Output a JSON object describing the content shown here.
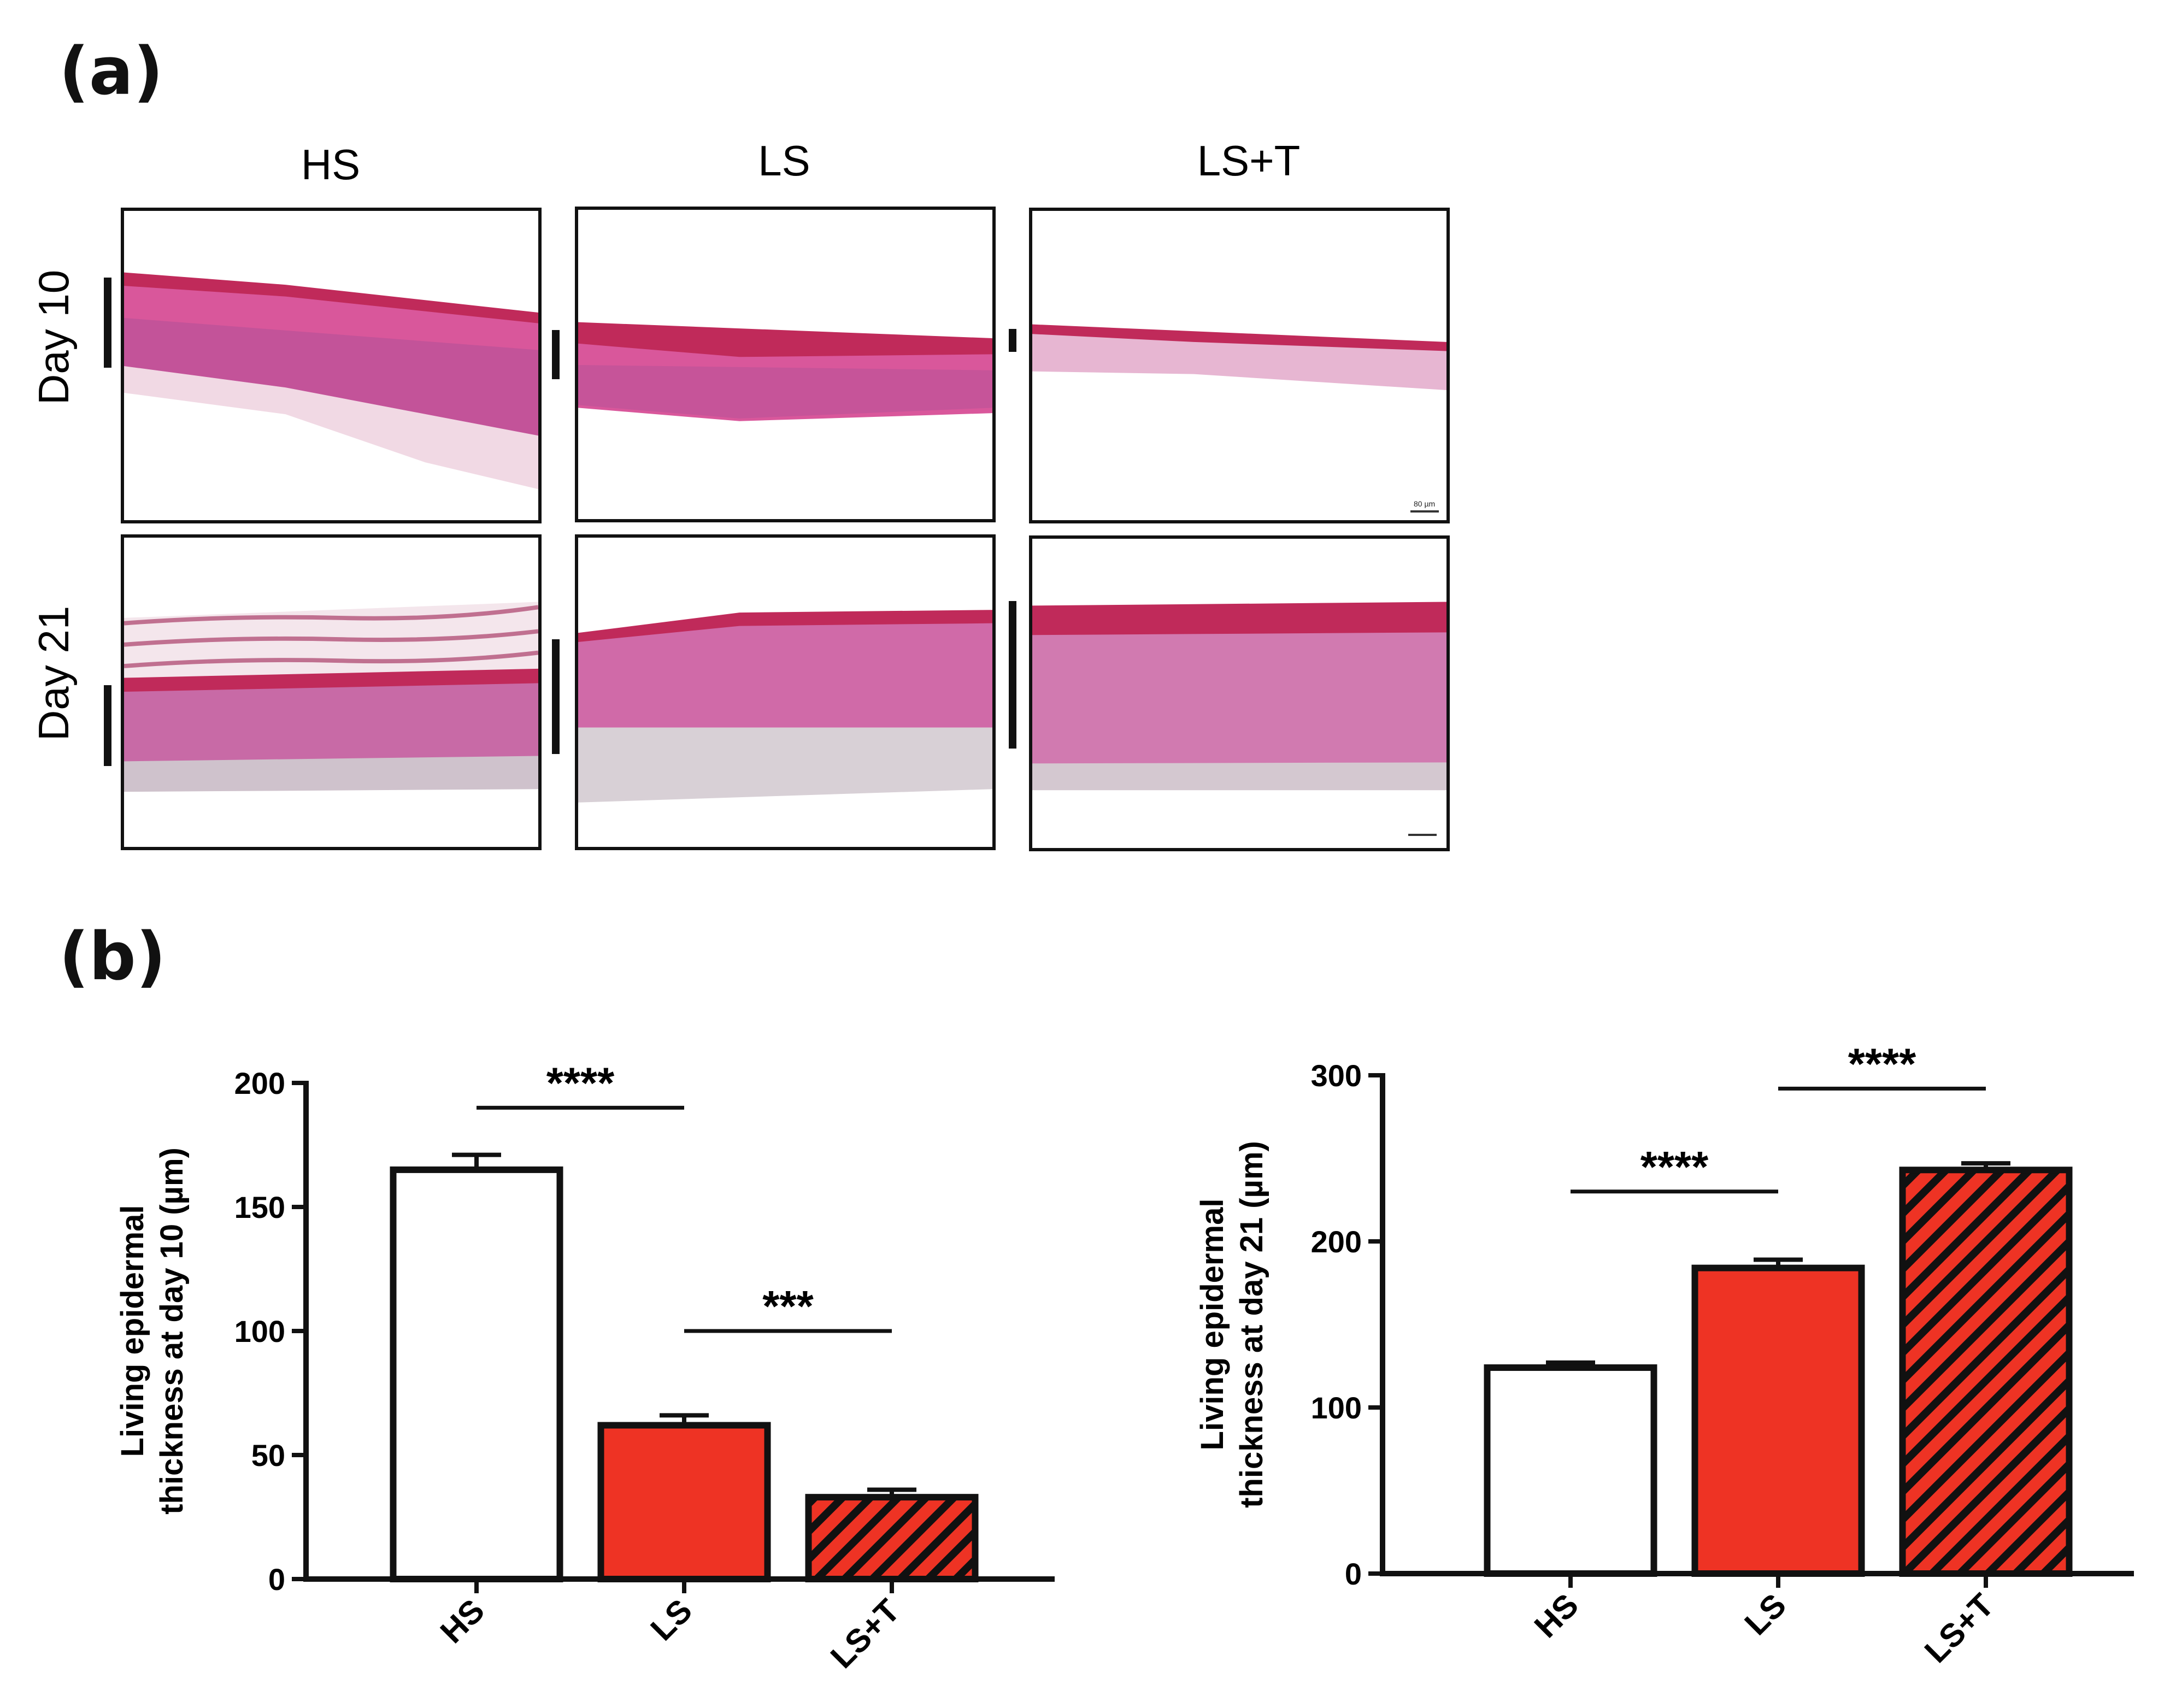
{
  "panel_a": {
    "letter": "(a)",
    "columns": [
      "HS",
      "LS",
      "LS+T"
    ],
    "rows": [
      "Day 10",
      "Day 21"
    ],
    "scale_text": "80 µm"
  },
  "panel_b": {
    "letter": "(b)"
  },
  "colors": {
    "white_bar": "#ffffff",
    "red_bar": "#ee3324",
    "hatch": "#111111",
    "tissue_pink": "#d9579b",
    "tissue_dark": "#c02a5a",
    "nuclei": "#6a3a8e"
  },
  "chart_data": [
    {
      "type": "bar",
      "categories": [
        "HS",
        "LS",
        "LS+T"
      ],
      "values": [
        165,
        62,
        33
      ],
      "errors": [
        6,
        4,
        3
      ],
      "fills": [
        "white",
        "red",
        "red-hatched"
      ],
      "title": "",
      "xlabel": "",
      "ylabel_lines": [
        "Living epidermal",
        "thickness at day 10 (µm)"
      ],
      "ylim": [
        0,
        200
      ],
      "yticks": [
        "0",
        "50",
        "100",
        "150",
        "200"
      ],
      "ytick_values": [
        0,
        50,
        100,
        150,
        200
      ],
      "grid": false,
      "significance": [
        {
          "from": 0,
          "to": 1,
          "label": "****",
          "y": 190
        },
        {
          "from": 1,
          "to": 2,
          "label": "***",
          "y": 100
        }
      ]
    },
    {
      "type": "bar",
      "categories": [
        "HS",
        "LS",
        "LS+T"
      ],
      "values": [
        124,
        184,
        243
      ],
      "errors": [
        3,
        5,
        4
      ],
      "fills": [
        "white",
        "red",
        "red-hatched"
      ],
      "title": "",
      "xlabel": "",
      "ylabel_lines": [
        "Living epidermal",
        "thickness at day 21 (µm)"
      ],
      "ylim": [
        0,
        300
      ],
      "yticks": [
        "0",
        "100",
        "200",
        "300"
      ],
      "ytick_values": [
        0,
        100,
        200,
        300
      ],
      "grid": false,
      "significance": [
        {
          "from": 0,
          "to": 1,
          "label": "****",
          "y": 230
        },
        {
          "from": 1,
          "to": 2,
          "label": "****",
          "y": 292
        }
      ]
    }
  ]
}
